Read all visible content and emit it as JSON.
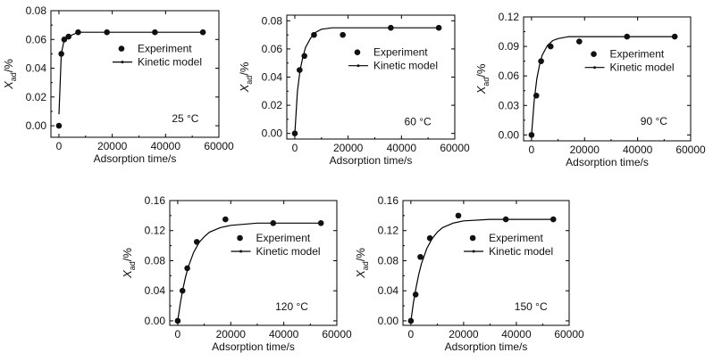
{
  "legend": {
    "experiment": "Experiment",
    "model": "Kinetic model"
  },
  "chart_data": [
    {
      "type": "scatter",
      "title": "",
      "annotation": "25 °C",
      "xlabel": "Adsorption time/s",
      "ylabel": "X_ad/%",
      "xlim": [
        -3000,
        60000
      ],
      "ylim": [
        -0.008,
        0.08
      ],
      "xticks": [
        0,
        20000,
        40000,
        60000
      ],
      "yticks": [
        0.0,
        0.02,
        0.04,
        0.06,
        0.08
      ],
      "ytick_labels": [
        "0.00",
        "0.02",
        "0.04",
        "0.06",
        "0.08"
      ],
      "series": [
        {
          "name": "Experiment",
          "kind": "points",
          "x": [
            0,
            900,
            2000,
            3600,
            7200,
            18000,
            36000,
            54000
          ],
          "y": [
            0.0,
            0.05,
            0.06,
            0.062,
            0.065,
            0.065,
            0.065,
            0.065
          ]
        },
        {
          "name": "Kinetic model",
          "kind": "line",
          "x": [
            0,
            900,
            2000,
            3600,
            7200,
            18000,
            36000,
            54000
          ],
          "y": [
            0.008,
            0.05,
            0.06,
            0.062,
            0.065,
            0.065,
            0.065,
            0.065
          ]
        }
      ]
    },
    {
      "type": "scatter",
      "title": "",
      "annotation": "60 °C",
      "xlabel": "Adsorption time/s",
      "ylabel": "X_ad/%",
      "xlim": [
        -3000,
        60000
      ],
      "ylim": [
        -0.004,
        0.084
      ],
      "xticks": [
        0,
        20000,
        40000,
        60000
      ],
      "yticks": [
        0.0,
        0.02,
        0.04,
        0.06,
        0.08
      ],
      "ytick_labels": [
        "0.00",
        "0.02",
        "0.04",
        "0.06",
        "0.08"
      ],
      "series": [
        {
          "name": "Experiment",
          "kind": "points",
          "x": [
            0,
            1800,
            3600,
            7200,
            18000,
            36000,
            54000
          ],
          "y": [
            0.0,
            0.045,
            0.055,
            0.07,
            0.07,
            0.075,
            0.075
          ]
        },
        {
          "name": "Kinetic model",
          "kind": "line",
          "x": [
            0,
            1000,
            2000,
            3000,
            4000,
            6000,
            8000,
            10000,
            14000,
            20000,
            30000,
            54000
          ],
          "y": [
            0.0,
            0.03,
            0.045,
            0.054,
            0.061,
            0.068,
            0.072,
            0.074,
            0.075,
            0.075,
            0.075,
            0.075
          ]
        }
      ]
    },
    {
      "type": "scatter",
      "title": "",
      "annotation": "90 °C",
      "xlabel": "Adsorption time/s",
      "ylabel": "X_ad/%",
      "xlim": [
        -3000,
        60000
      ],
      "ylim": [
        -0.006,
        0.12
      ],
      "xticks": [
        0,
        20000,
        40000,
        60000
      ],
      "yticks": [
        0.0,
        0.03,
        0.06,
        0.09,
        0.12
      ],
      "ytick_labels": [
        "0.00",
        "0.03",
        "0.06",
        "0.09",
        "0.12"
      ],
      "series": [
        {
          "name": "Experiment",
          "kind": "points",
          "x": [
            0,
            1800,
            3600,
            7200,
            18000,
            36000,
            54000
          ],
          "y": [
            0.0,
            0.04,
            0.075,
            0.09,
            0.095,
            0.1,
            0.1
          ]
        },
        {
          "name": "Kinetic model",
          "kind": "line",
          "x": [
            0,
            1000,
            2000,
            3000,
            4000,
            6000,
            8000,
            10000,
            14000,
            20000,
            30000,
            54000
          ],
          "y": [
            0.0,
            0.035,
            0.057,
            0.071,
            0.081,
            0.091,
            0.096,
            0.098,
            0.1,
            0.1,
            0.1,
            0.1
          ]
        }
      ]
    },
    {
      "type": "scatter",
      "title": "",
      "annotation": "120 °C",
      "xlabel": "Adsorption time/s",
      "ylabel": "X_ad/%",
      "xlim": [
        -3000,
        60000
      ],
      "ylim": [
        -0.006,
        0.16
      ],
      "xticks": [
        0,
        20000,
        40000,
        60000
      ],
      "yticks": [
        0.0,
        0.04,
        0.08,
        0.12,
        0.16
      ],
      "ytick_labels": [
        "0.00",
        "0.04",
        "0.08",
        "0.12",
        "0.16"
      ],
      "series": [
        {
          "name": "Experiment",
          "kind": "points",
          "x": [
            0,
            1800,
            3600,
            7200,
            18000,
            36000,
            54000
          ],
          "y": [
            0.0,
            0.04,
            0.07,
            0.105,
            0.135,
            0.13,
            0.13
          ]
        },
        {
          "name": "Kinetic model",
          "kind": "line",
          "x": [
            0,
            1000,
            2000,
            3000,
            4000,
            6000,
            8000,
            10000,
            12000,
            16000,
            20000,
            30000,
            54000
          ],
          "y": [
            0.0,
            0.024,
            0.043,
            0.059,
            0.072,
            0.091,
            0.104,
            0.112,
            0.118,
            0.124,
            0.127,
            0.13,
            0.13
          ]
        }
      ]
    },
    {
      "type": "scatter",
      "title": "",
      "annotation": "150 °C",
      "xlabel": "Adsorption time/s",
      "ylabel": "X_ad/%",
      "xlim": [
        -3000,
        60000
      ],
      "ylim": [
        -0.006,
        0.16
      ],
      "xticks": [
        0,
        20000,
        40000,
        60000
      ],
      "yticks": [
        0.0,
        0.04,
        0.08,
        0.12,
        0.16
      ],
      "ytick_labels": [
        "0.00",
        "0.04",
        "0.08",
        "0.12",
        "0.16"
      ],
      "series": [
        {
          "name": "Experiment",
          "kind": "points",
          "x": [
            0,
            1800,
            3600,
            7200,
            18000,
            36000,
            54000
          ],
          "y": [
            0.0,
            0.035,
            0.085,
            0.11,
            0.14,
            0.135,
            0.135
          ]
        },
        {
          "name": "Kinetic model",
          "kind": "line",
          "x": [
            0,
            1000,
            2000,
            3000,
            4000,
            6000,
            8000,
            10000,
            12000,
            16000,
            20000,
            30000,
            54000
          ],
          "y": [
            0.0,
            0.025,
            0.045,
            0.062,
            0.076,
            0.096,
            0.109,
            0.118,
            0.124,
            0.13,
            0.133,
            0.135,
            0.135
          ]
        }
      ]
    }
  ]
}
